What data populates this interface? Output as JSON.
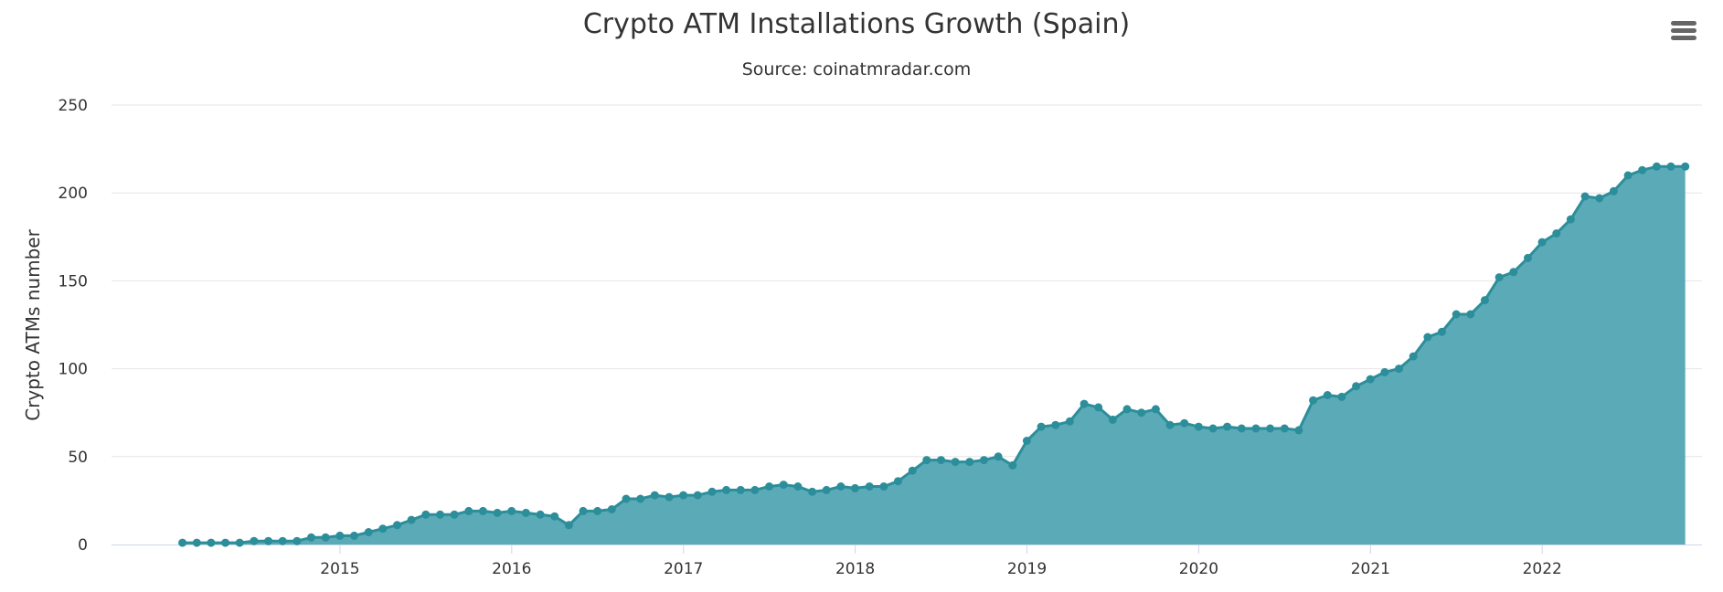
{
  "chart_data": {
    "type": "area",
    "title": "Crypto ATM Installations Growth (Spain)",
    "subtitle": "Source: coinatmradar.com",
    "xlabel": "",
    "ylabel": "Crypto ATMs number",
    "ylim": [
      0,
      250
    ],
    "yticks": [
      0,
      50,
      100,
      150,
      200,
      250
    ],
    "xticks": [
      {
        "label": "2015",
        "x": 2015.0
      },
      {
        "label": "2016",
        "x": 2016.0
      },
      {
        "label": "2017",
        "x": 2017.0
      },
      {
        "label": "2018",
        "x": 2018.0
      },
      {
        "label": "2019",
        "x": 2019.0
      },
      {
        "label": "2020",
        "x": 2020.0
      },
      {
        "label": "2021",
        "x": 2021.0
      },
      {
        "label": "2022",
        "x": 2022.0
      }
    ],
    "xlim": [
      2013.67,
      2022.93
    ],
    "x_start": 2014.083,
    "x_step": 0.08333,
    "grid": true,
    "legend": false,
    "series": [
      {
        "name": "Crypto ATMs",
        "values": [
          1,
          1,
          1,
          1,
          1,
          2,
          2,
          2,
          2,
          4,
          4,
          5,
          5,
          7,
          9,
          11,
          14,
          17,
          17,
          17,
          19,
          19,
          18,
          19,
          18,
          17,
          16,
          11,
          19,
          19,
          20,
          26,
          26,
          28,
          27,
          28,
          28,
          30,
          31,
          31,
          31,
          33,
          34,
          33,
          30,
          31,
          33,
          32,
          33,
          33,
          36,
          42,
          48,
          48,
          47,
          47,
          48,
          50,
          45,
          59,
          67,
          68,
          70,
          80,
          78,
          71,
          77,
          75,
          77,
          68,
          69,
          67,
          66,
          67,
          66,
          66,
          66,
          66,
          65,
          82,
          85,
          84,
          90,
          94,
          98,
          100,
          107,
          118,
          121,
          131,
          131,
          139,
          152,
          155,
          163,
          172,
          177,
          185,
          198,
          197,
          201,
          210,
          213,
          215,
          215,
          215
        ]
      }
    ]
  },
  "colors": {
    "area_fill": "#5aabb7",
    "line": "#2c8e9a",
    "marker": "#2c8e9a",
    "grid": "#e6e6e6",
    "axis": "#ccd6eb",
    "text": "#333333",
    "menu_icon": "#666666"
  },
  "menu": {
    "icon": "hamburger-menu-icon"
  }
}
